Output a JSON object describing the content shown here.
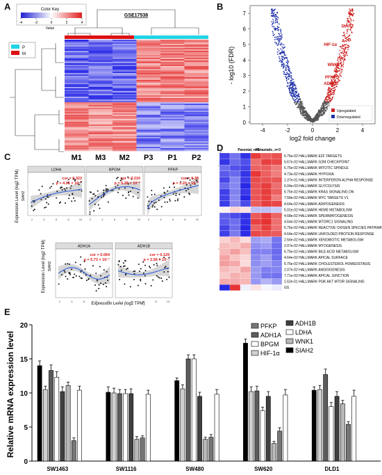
{
  "panel_labels": {
    "a": "A",
    "b": "B",
    "c": "C",
    "d": "D",
    "e": "E"
  },
  "panel_a": {
    "color_key_title": "Color Key",
    "color_key_axis": "Value",
    "color_key_ticks": [
      "-4",
      "-2",
      "0",
      "2",
      "4"
    ],
    "dataset": "GSE17538",
    "legend": [
      {
        "label": "P",
        "color": "#22d3e6"
      },
      {
        "label": "M",
        "color": "#dd1111"
      }
    ],
    "columns": [
      "M1",
      "M3",
      "M2",
      "P3",
      "P1",
      "P2"
    ]
  },
  "panel_b": {
    "ylabel": "- log10 (FDR)",
    "xlabel": "log2 fold change",
    "xticks": [
      "-4",
      "-2",
      "0",
      "2",
      "4"
    ],
    "yticks": [
      "0",
      "1",
      "2",
      "3",
      "4",
      "5",
      "6",
      "7"
    ],
    "genes": [
      "SIAH2",
      "HIF-1α",
      "WNK1",
      "PFKP",
      "ADH1B"
    ],
    "legend": [
      {
        "label": "Upregulated",
        "color": "#cc2222"
      },
      {
        "label": "Downregulated",
        "color": "#2233aa"
      }
    ]
  },
  "panel_c": {
    "ylabel": "Expression Level (log2 TPM)",
    "xlabel": "Expression Level (log2 TPM)",
    "row1_y": "SIAH2",
    "row2_y": "SIAH2",
    "top": [
      {
        "title": "LDHA",
        "cor": "cor = 0.322",
        "p": "p = 4.01 × 10⁻³"
      },
      {
        "title": "BPGM",
        "cor": "cor = 0.216",
        "p": "p = 5.39 × 10⁻²"
      },
      {
        "title": "PFKP",
        "cor": "cor = 0.36",
        "p": "p = 1.20 × 10⁻³"
      }
    ],
    "bottom": [
      {
        "title": "ADH1A",
        "cor": "cor = 0.064",
        "p": "p = 5.73 × 10⁻¹"
      },
      {
        "title": "ADH1B",
        "cor": "cor = 0.129",
        "p": "p = 2.56 × 10⁻¹"
      }
    ]
  },
  "panel_d": {
    "header_left": "Parental, n=3",
    "header_right": "Metastatic, n=3",
    "rows": [
      "6.75e-02 HALLMARK E2F TARGETS",
      "6.67e-02 HALLMARK G2M CHECKPOINT",
      "6.75e-02 HALLMARK MITOTIC SPINDLE",
      "4.73e-02 HALLMARK HYPOXIA",
      "1.37e-01 HALLMARK INTERFERON ALPHA RESPONSE",
      "6.04e-03 HALLMARK GLYCOLYSIS",
      "6.75e-02 HALLMARK KRAS SIGNALING DN",
      "7.58e-02 HALLMARK MYC TARGETS V1",
      "4.64e-02 HALLMARK ADIPOGENESIS",
      "5.01e-02 HALLMARK HEME METABOLISM",
      "4.68e-02 HALLMARK SPERMATOGENESIS",
      "4.64e-02 HALLMARK MTORC1 SIGNALING",
      "6.75e-02 HALLMARK REACTIVE OXIGEN SPECIES PATHWAY",
      "4.64e-02 HALLMARK UNFOLDED PROTEIN RESPONSE",
      "2.56e-02 HALLMARK XENOBIOTIC METABOLISM",
      "2.07e-02 HALLMARK MYOGENESIS",
      "6.75e-02 HALLMARK BILE ACID METABOLISM",
      "4.64e-02 HALLMARK APICAL SURFACE",
      "6.75e-02 HALLMARK CHOLESTEROL HOMEOSTASIS",
      "2.07e-02 HALLMARK ANGIOGENESIS",
      "7.71e-02 HALLMARK APICAL JUNCTION",
      "1.62e-01 HALLMARK PI3K AKT MTOR SIGNALING",
      "GS"
    ]
  },
  "chart_data": {
    "type": "bar",
    "ylabel": "Relative mRNA expression level",
    "ylim": [
      0,
      20
    ],
    "yticks": [
      0,
      5,
      10,
      15,
      20
    ],
    "categories": [
      "SW1463",
      "SW1116",
      "SW480",
      "SW620",
      "DLD1"
    ],
    "series": [
      {
        "name": "SIAH2",
        "color": "#000000",
        "values": [
          14.0,
          10.1,
          11.8,
          17.3,
          10.4
        ],
        "errors": [
          0.7,
          0.8,
          0.4,
          0.6,
          0.5
        ]
      },
      {
        "name": "HIF-1α",
        "color": "#d0d0d0",
        "values": [
          10.5,
          10.0,
          10.6,
          10.2,
          10.5
        ],
        "errors": [
          0.5,
          0.7,
          0.6,
          0.7,
          0.6
        ]
      },
      {
        "name": "ADH1A",
        "color": "#5c5c5c",
        "values": [
          13.3,
          9.9,
          15.0,
          10.3,
          12.7
        ],
        "errors": [
          0.8,
          0.6,
          0.6,
          0.7,
          0.8
        ]
      },
      {
        "name": "BPGM",
        "color": "#ffffff",
        "values": [
          12.3,
          9.9,
          15.0,
          7.4,
          8.0
        ],
        "errors": [
          0.8,
          0.6,
          0.6,
          0.5,
          0.6
        ]
      },
      {
        "name": "ADH1B",
        "color": "#404040",
        "values": [
          10.2,
          9.9,
          9.5,
          9.5,
          9.5
        ],
        "errors": [
          0.7,
          0.7,
          0.6,
          0.7,
          0.7
        ]
      },
      {
        "name": "WNK1",
        "color": "#b8b8b8",
        "values": [
          11.1,
          3.2,
          3.2,
          2.6,
          8.4
        ],
        "errors": [
          0.5,
          0.4,
          0.3,
          0.3,
          0.5
        ]
      },
      {
        "name": "PFKP",
        "color": "#777777",
        "values": [
          3.0,
          3.4,
          3.5,
          4.4,
          5.4
        ],
        "errors": [
          0.4,
          0.3,
          0.4,
          0.5,
          0.4
        ]
      },
      {
        "name": "LDHA",
        "color": "#ffffff",
        "values": [
          10.4,
          9.8,
          9.8,
          9.7,
          9.5
        ],
        "errors": [
          0.6,
          0.6,
          0.7,
          0.8,
          0.9
        ]
      }
    ],
    "legend_columns": [
      [
        "PFKP",
        "ADH1A",
        "BPGM",
        "HIF-1α"
      ],
      [
        "ADH1B",
        "LDHA",
        "WNK1",
        "SIAH2"
      ]
    ]
  }
}
